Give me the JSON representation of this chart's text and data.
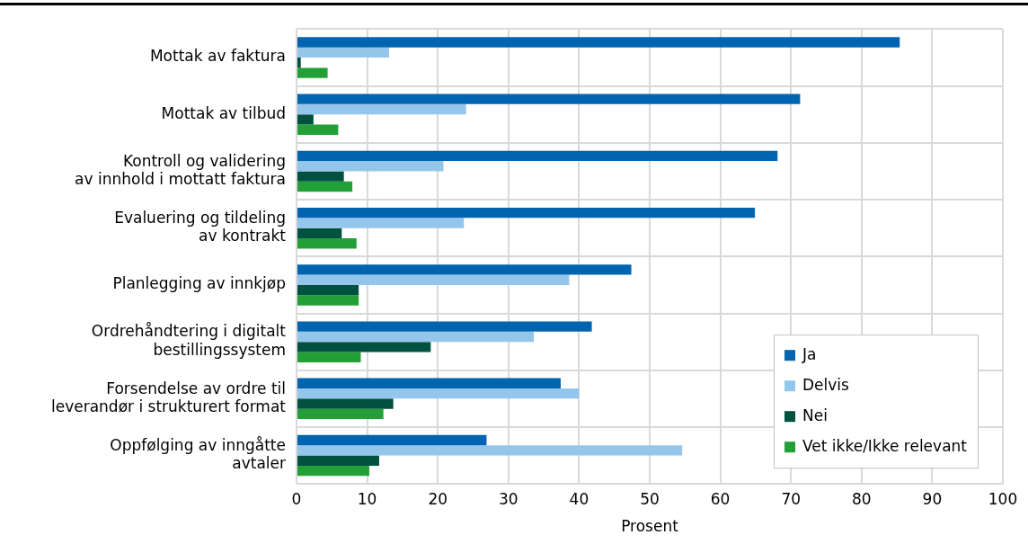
{
  "chart_data": {
    "type": "bar",
    "orientation": "horizontal",
    "xlabel": "Prosent",
    "categories": [
      "Mottak av faktura",
      "Mottak av tilbud",
      "Kontroll og validering\nav innhold i mottatt faktura",
      "Evaluering og tildeling\nav kontrakt",
      "Planlegging av innkjøp",
      "Ordrehåndtering i digitalt\nbestillingssystem",
      "Forsendelse av ordre til\nleverandør i strukturert format",
      "Oppfølging av inngåtte\navtaler"
    ],
    "series": [
      {
        "name": "Ja",
        "color": "#0064b0",
        "values": [
          85.4,
          71.3,
          68.1,
          64.9,
          47.4,
          41.8,
          37.4,
          26.9
        ]
      },
      {
        "name": "Delvis",
        "color": "#94c6eb",
        "values": [
          13.1,
          24.0,
          20.8,
          23.7,
          38.6,
          33.6,
          40.0,
          54.6
        ]
      },
      {
        "name": "Nei",
        "color": "#005140",
        "values": [
          0.6,
          2.4,
          6.7,
          6.4,
          8.8,
          19.0,
          13.7,
          11.7
        ]
      },
      {
        "name": "Vet ikke/Ikke relevant",
        "color": "#22a037",
        "values": [
          4.4,
          5.9,
          7.9,
          8.5,
          8.8,
          9.1,
          12.3,
          10.3
        ]
      }
    ],
    "xlim": [
      0,
      100
    ],
    "xticks": [
      0,
      10,
      20,
      30,
      40,
      50,
      60,
      70,
      80,
      90,
      100
    ],
    "grid": true,
    "legend": "bottom right"
  }
}
